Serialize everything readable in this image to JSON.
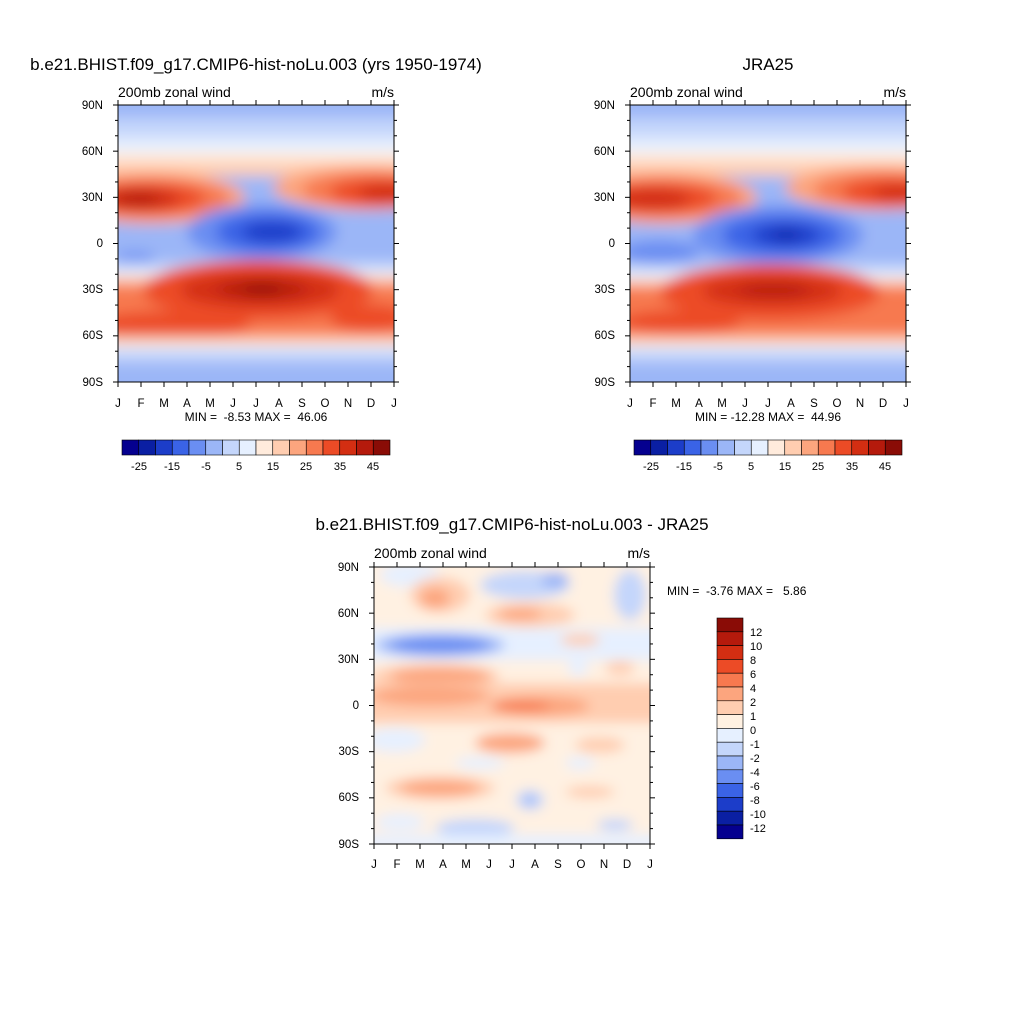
{
  "panels": [
    {
      "title": "b.e21.BHIST.f09_g17.CMIP6-hist-noLu.003 (yrs 1950-1974)",
      "left_label": "200mb zonal wind",
      "right_label": "m/s",
      "minmax_text": "MIN =  -8.53 MAX =  46.06"
    },
    {
      "title": "JRA25",
      "left_label": "200mb zonal wind",
      "right_label": "m/s",
      "minmax_text": "MIN = -12.28 MAX =  44.96"
    },
    {
      "title": "b.e21.BHIST.f09_g17.CMIP6-hist-noLu.003 - JRA25",
      "left_label": "200mb zonal wind",
      "right_label": "m/s",
      "minmax_text": "MIN =  -3.76 MAX =   5.86"
    }
  ],
  "colors": {
    "main_palette": [
      "#05008f",
      "#0a1fa3",
      "#1c3dc9",
      "#3a63e6",
      "#6a8ef2",
      "#9bb6f7",
      "#c4d6fb",
      "#e6f0ff",
      "#ffebdc",
      "#ffcdb0",
      "#fca57e",
      "#f7794f",
      "#ec4b26",
      "#d32e12",
      "#b51a0c",
      "#8a0c06"
    ],
    "diff_palette": [
      "#05008f",
      "#0a1fa3",
      "#1c3dc9",
      "#3a63e6",
      "#6a8ef2",
      "#9bb6f7",
      "#c4d6fb",
      "#e6f0ff",
      "#fff1e2",
      "#ffcdb0",
      "#fca57e",
      "#f7794f",
      "#ec4b26",
      "#d32e12",
      "#b51a0c",
      "#8a0c06"
    ]
  },
  "chart_data": [
    {
      "type": "heatmap",
      "title": "b.e21.BHIST.f09_g17.CMIP6-hist-noLu.003 (yrs 1950-1974)",
      "variable": "200mb zonal wind",
      "units": "m/s",
      "x_ticks": [
        "J",
        "F",
        "M",
        "A",
        "M",
        "J",
        "J",
        "A",
        "S",
        "O",
        "N",
        "D",
        "J"
      ],
      "y_ticks": [
        "90N",
        "60N",
        "30N",
        "0",
        "30S",
        "60S",
        "90S"
      ],
      "y_range": [
        -90,
        90
      ],
      "colorbar_levels": [
        -30,
        -25,
        -20,
        -15,
        -10,
        -5,
        0,
        5,
        10,
        15,
        20,
        25,
        30,
        35,
        40,
        45
      ],
      "colorbar_tick_labels": [
        "-25",
        "-15",
        "-5",
        "5",
        "15",
        "25",
        "35",
        "45"
      ],
      "min": -8.53,
      "max": 46.06,
      "features": [
        {
          "month": 0.8,
          "lat": 28,
          "value": 44
        },
        {
          "month": 11.5,
          "lat": 30,
          "value": 40
        },
        {
          "month": 6.5,
          "lat": 5,
          "value": -8
        },
        {
          "month": 6.8,
          "lat": -30,
          "value": 44
        },
        {
          "month": 2.0,
          "lat": -50,
          "value": 30
        },
        {
          "month": 0.9,
          "lat": -10,
          "value": -4
        }
      ]
    },
    {
      "type": "heatmap",
      "title": "JRA25",
      "variable": "200mb zonal wind",
      "units": "m/s",
      "x_ticks": [
        "J",
        "F",
        "M",
        "A",
        "M",
        "J",
        "J",
        "A",
        "S",
        "O",
        "N",
        "D",
        "J"
      ],
      "y_ticks": [
        "90N",
        "60N",
        "30N",
        "0",
        "30S",
        "60S",
        "90S"
      ],
      "y_range": [
        -90,
        90
      ],
      "colorbar_levels": [
        -30,
        -25,
        -20,
        -15,
        -10,
        -5,
        0,
        5,
        10,
        15,
        20,
        25,
        30,
        35,
        40,
        45
      ],
      "colorbar_tick_labels": [
        "-25",
        "-15",
        "-5",
        "5",
        "15",
        "25",
        "35",
        "45"
      ],
      "min": -12.28,
      "max": 44.96,
      "features": [
        {
          "month": 0.8,
          "lat": 28,
          "value": 42
        },
        {
          "month": 11.5,
          "lat": 31,
          "value": 40
        },
        {
          "month": 6.6,
          "lat": 5,
          "value": -11
        },
        {
          "month": 6.8,
          "lat": -30,
          "value": 42
        },
        {
          "month": 2.0,
          "lat": -50,
          "value": 28
        }
      ]
    },
    {
      "type": "heatmap",
      "title": "b.e21.BHIST.f09_g17.CMIP6-hist-noLu.003 - JRA25",
      "variable": "200mb zonal wind",
      "units": "m/s",
      "x_ticks": [
        "J",
        "F",
        "M",
        "A",
        "M",
        "J",
        "J",
        "A",
        "S",
        "O",
        "N",
        "D",
        "J"
      ],
      "y_ticks": [
        "90N",
        "60N",
        "30N",
        "0",
        "30S",
        "60S",
        "90S"
      ],
      "y_range": [
        -90,
        90
      ],
      "colorbar_levels": [
        -12,
        -10,
        -8,
        -6,
        -4,
        -2,
        -1,
        0,
        1,
        2,
        4,
        6,
        8,
        10,
        12
      ],
      "colorbar_tick_labels": [
        "12",
        "10",
        "8",
        "6",
        "4",
        "2",
        "1",
        "0",
        "-1",
        "-2",
        "-4",
        "-6",
        "-8",
        "-10",
        "-12"
      ],
      "min": -3.76,
      "max": 5.86,
      "features": [
        {
          "month": 2.0,
          "lat": 70,
          "value": 3
        },
        {
          "month": 6.5,
          "lat": 50,
          "value": 3
        },
        {
          "month": 2.8,
          "lat": 38,
          "value": -3
        },
        {
          "month": 2.8,
          "lat": 20,
          "value": 4
        },
        {
          "month": 9.0,
          "lat": -1,
          "value": 4
        },
        {
          "month": 2.0,
          "lat": 5,
          "value": 3.5
        },
        {
          "month": 6.5,
          "lat": -25,
          "value": 4
        },
        {
          "month": 2.5,
          "lat": -55,
          "value": 3
        },
        {
          "month": 6.5,
          "lat": -65,
          "value": -2
        }
      ]
    }
  ]
}
